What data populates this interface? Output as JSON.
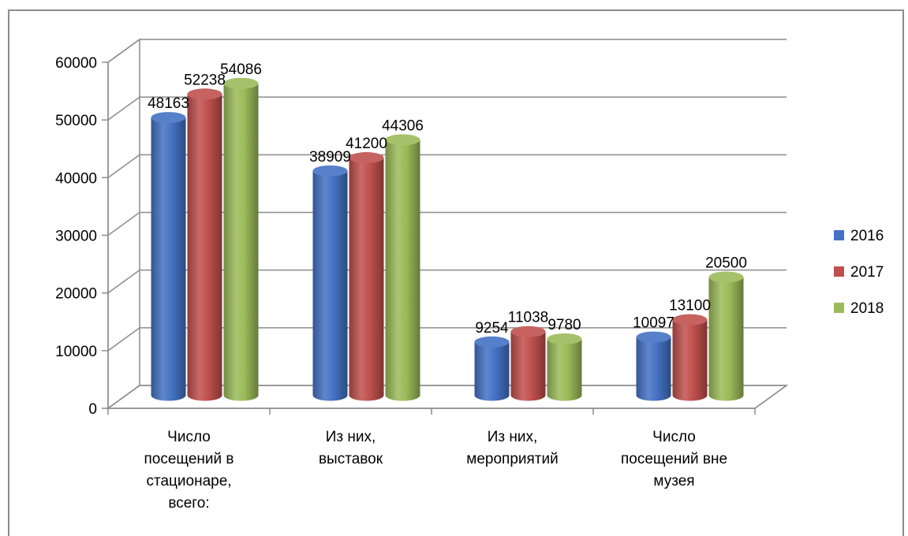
{
  "chart_data": {
    "type": "bar",
    "categories": [
      [
        "Число",
        "посещений в",
        "стационаре,",
        "всего:"
      ],
      [
        "Из них,",
        "выставок"
      ],
      [
        "Из них,",
        "мероприятий"
      ],
      [
        "Число",
        "посещений вне",
        "музея"
      ]
    ],
    "series": [
      {
        "name": "2016",
        "color": "#4472c4",
        "values": [
          48163,
          38909,
          9254,
          10097
        ]
      },
      {
        "name": "2017",
        "color": "#c0504d",
        "values": [
          52238,
          41200,
          11038,
          13100
        ]
      },
      {
        "name": "2018",
        "color": "#9bbb59",
        "values": [
          54086,
          44306,
          9780,
          20500
        ]
      }
    ],
    "y_ticks": [
      "0",
      "10000",
      "20000",
      "30000",
      "40000",
      "50000",
      "60000"
    ],
    "ylim": [
      0,
      60000
    ],
    "grid": true,
    "legend_position": "right",
    "style": "3d-cylinder"
  }
}
